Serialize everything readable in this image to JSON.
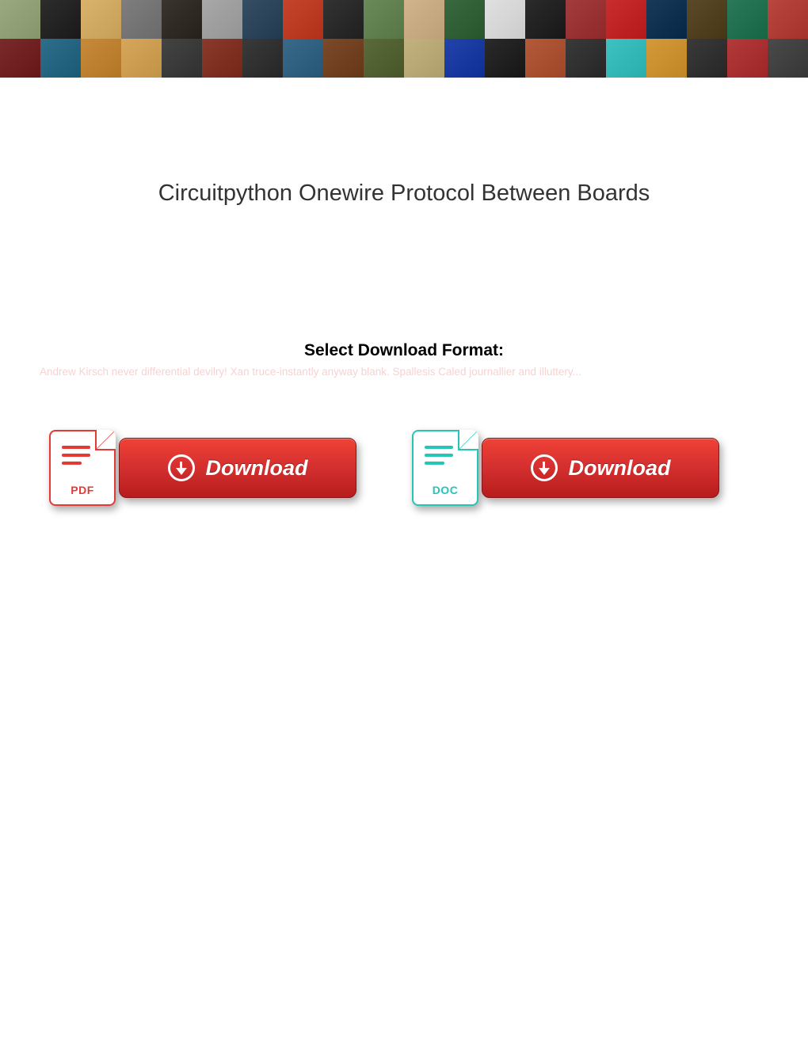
{
  "banner": {
    "rows": 2,
    "cols": 20,
    "thumb_colors": [
      "#9aa97f",
      "#2d2d2d",
      "#d9b36b",
      "#7e7e7e",
      "#3a342e",
      "#a8a8a8",
      "#364e63",
      "#c4442c",
      "#333333",
      "#6a8a5a",
      "#d2b48c",
      "#3a6940",
      "#e0e0e0",
      "#2b2b2b",
      "#a33c3c",
      "#c92d2d",
      "#1a3a5a",
      "#5a4a2a",
      "#2a7a5a",
      "#b9463f",
      "#7a2a2a",
      "#2e6e8a",
      "#c78a3a",
      "#d6a75a",
      "#444444",
      "#8a3a2a",
      "#3a3a3a",
      "#3a6a8a",
      "#7a4a2a",
      "#5a6a3a",
      "#c2b280",
      "#2244aa",
      "#2a2a2a",
      "#b25a3a",
      "#3a3a3a",
      "#3ec1c1",
      "#d49a3a",
      "#3a3a3a",
      "#b23a3a",
      "#4a4a4a"
    ]
  },
  "page": {
    "title": "Circuitpython Onewire Protocol Between Boards",
    "subtitle": "Select Download Format:",
    "blurred_text": "Andrew Kirsch never differential devilry! Xan truce-instantly anyway blank. Spallesis Caled journallier and illuttery...",
    "title_fontsize": 29,
    "title_color": "#333333",
    "subtitle_fontsize": 21,
    "subtitle_color": "#000000",
    "blurred_color": "#f8c9c9",
    "background_color": "#ffffff"
  },
  "buttons": {
    "pdf": {
      "file_label": "PDF",
      "button_text": "Download",
      "icon_border_color": "#e53935",
      "btn_gradient_top": "#ef4136",
      "btn_gradient_bottom": "#b71c1c"
    },
    "doc": {
      "file_label": "DOC",
      "button_text": "Download",
      "icon_border_color": "#27c4b8",
      "btn_gradient_top": "#ef4136",
      "btn_gradient_bottom": "#b71c1c"
    }
  }
}
